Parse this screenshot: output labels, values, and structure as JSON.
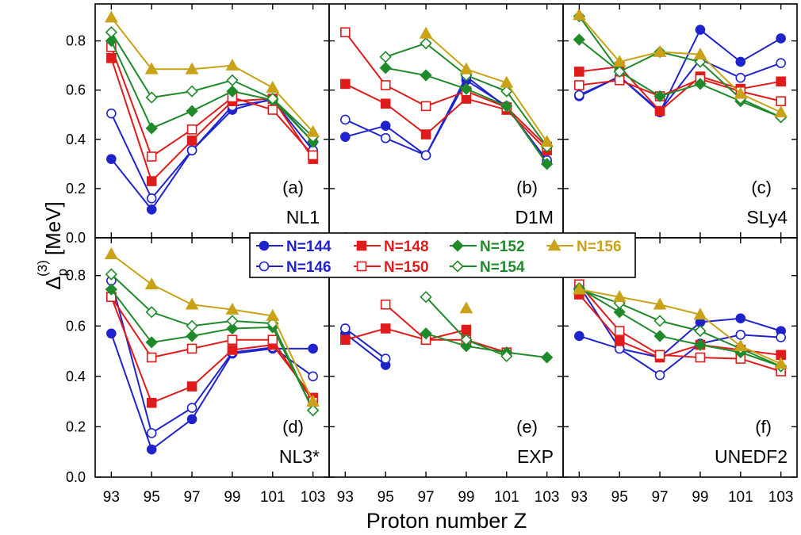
{
  "chart_data": {
    "type": "line",
    "xlabel": "Proton number Z",
    "ylabel": "Δ",
    "ylabel_sub": "p",
    "ylabel_sup": "(3)",
    "ylabel_unit": "[MeV]",
    "x_ticks": [
      93,
      95,
      97,
      99,
      101,
      103
    ],
    "xlim": [
      92.2,
      103.8
    ],
    "ylim": [
      0,
      0.95
    ],
    "y_ticks": [
      0.0,
      0.2,
      0.4,
      0.6,
      0.8
    ],
    "y_tick_labels": [
      "0.0",
      "0.2",
      "0.4",
      "0.6",
      "0.8"
    ],
    "grid": false,
    "legend": {
      "placement": "top-center of middle row",
      "order": [
        "N144",
        "N148",
        "N152",
        "N156",
        "N146",
        "N150",
        "N154"
      ]
    },
    "series_style": {
      "N144": {
        "label": "N=144",
        "color": "#1f23cc",
        "marker": "circle",
        "filled": true
      },
      "N146": {
        "label": "N=146",
        "color": "#1f23cc",
        "marker": "circle",
        "filled": false
      },
      "N148": {
        "label": "N=148",
        "color": "#e01b1b",
        "marker": "square",
        "filled": true
      },
      "N150": {
        "label": "N=150",
        "color": "#e01b1b",
        "marker": "square",
        "filled": false
      },
      "N152": {
        "label": "N=152",
        "color": "#1f8a2a",
        "marker": "diamond",
        "filled": true
      },
      "N154": {
        "label": "N=154",
        "color": "#1f8a2a",
        "marker": "diamond",
        "filled": false
      },
      "N156": {
        "label": "N=156",
        "color": "#c9a218",
        "marker": "triangle",
        "filled": true
      }
    },
    "panels": [
      {
        "tag": "(a)",
        "name": "NL1",
        "series": {
          "N144": [
            [
              93,
              0.32
            ],
            [
              95,
              0.115
            ],
            [
              97,
              0.355
            ],
            [
              99,
              0.52
            ],
            [
              101,
              0.565
            ],
            [
              103,
              0.39
            ]
          ],
          "N146": [
            [
              93,
              0.505
            ],
            [
              95,
              0.16
            ],
            [
              97,
              0.355
            ],
            [
              99,
              0.535
            ],
            [
              101,
              0.56
            ],
            [
              103,
              0.355
            ]
          ],
          "N148": [
            [
              93,
              0.73
            ],
            [
              95,
              0.23
            ],
            [
              97,
              0.395
            ],
            [
              99,
              0.555
            ],
            [
              101,
              0.565
            ],
            [
              103,
              0.32
            ]
          ],
          "N150": [
            [
              93,
              0.775
            ],
            [
              95,
              0.33
            ],
            [
              97,
              0.44
            ],
            [
              99,
              0.57
            ],
            [
              101,
              0.52
            ],
            [
              103,
              0.335
            ]
          ],
          "N152": [
            [
              93,
              0.8
            ],
            [
              95,
              0.445
            ],
            [
              97,
              0.515
            ],
            [
              99,
              0.595
            ],
            [
              101,
              0.56
            ],
            [
              103,
              0.39
            ]
          ],
          "N154": [
            [
              93,
              0.835
            ],
            [
              95,
              0.57
            ],
            [
              97,
              0.595
            ],
            [
              99,
              0.64
            ],
            [
              101,
              0.565
            ],
            [
              103,
              0.41
            ]
          ],
          "N156": [
            [
              93,
              0.895
            ],
            [
              95,
              0.685
            ],
            [
              97,
              0.685
            ],
            [
              99,
              0.7
            ],
            [
              101,
              0.61
            ],
            [
              103,
              0.43
            ]
          ]
        }
      },
      {
        "tag": "(b)",
        "name": "D1M",
        "series": {
          "N144": [
            [
              93,
              0.41
            ],
            [
              95,
              0.455
            ],
            [
              97,
              0.335
            ],
            [
              99,
              0.64
            ],
            [
              101,
              0.535
            ],
            [
              103,
              0.305
            ]
          ],
          "N146": [
            [
              93,
              0.48
            ],
            [
              95,
              0.405
            ],
            [
              97,
              0.335
            ],
            [
              99,
              0.655
            ],
            [
              101,
              0.53
            ],
            [
              103,
              0.315
            ]
          ],
          "N148": [
            [
              93,
              0.625
            ],
            [
              95,
              0.545
            ],
            [
              97,
              0.42
            ],
            [
              99,
              0.565
            ],
            [
              101,
              0.52
            ],
            [
              103,
              0.355
            ]
          ],
          "N150": [
            [
              93,
              0.835
            ],
            [
              95,
              0.62
            ],
            [
              97,
              0.535
            ],
            [
              99,
              0.595
            ],
            [
              101,
              0.53
            ],
            [
              103,
              0.37
            ]
          ],
          "N152": [
            [
              95,
              0.69
            ],
            [
              97,
              0.66
            ],
            [
              99,
              0.605
            ],
            [
              101,
              0.535
            ],
            [
              103,
              0.3
            ]
          ],
          "N154": [
            [
              95,
              0.735
            ],
            [
              97,
              0.79
            ],
            [
              99,
              0.66
            ],
            [
              101,
              0.595
            ],
            [
              103,
              0.37
            ]
          ],
          "N156": [
            [
              97,
              0.83
            ],
            [
              99,
              0.685
            ],
            [
              101,
              0.63
            ],
            [
              103,
              0.39
            ]
          ]
        }
      },
      {
        "tag": "(c)",
        "name": "SLy4",
        "series": {
          "N144": [
            [
              93,
              0.575
            ],
            [
              95,
              0.655
            ],
            [
              97,
              0.51
            ],
            [
              99,
              0.845
            ],
            [
              101,
              0.715
            ],
            [
              103,
              0.81
            ]
          ],
          "N146": [
            [
              93,
              0.58
            ],
            [
              95,
              0.655
            ],
            [
              97,
              0.515
            ],
            [
              99,
              0.725
            ],
            [
              101,
              0.65
            ],
            [
              103,
              0.71
            ]
          ],
          "N148": [
            [
              93,
              0.675
            ],
            [
              95,
              0.695
            ],
            [
              97,
              0.515
            ],
            [
              99,
              0.655
            ],
            [
              101,
              0.605
            ],
            [
              103,
              0.635
            ]
          ],
          "N150": [
            [
              93,
              0.62
            ],
            [
              95,
              0.64
            ],
            [
              97,
              0.575
            ],
            [
              99,
              0.645
            ],
            [
              101,
              0.595
            ],
            [
              103,
              0.555
            ]
          ],
          "N152": [
            [
              93,
              0.805
            ],
            [
              95,
              0.675
            ],
            [
              97,
              0.575
            ],
            [
              99,
              0.625
            ],
            [
              101,
              0.555
            ],
            [
              103,
              0.49
            ]
          ],
          "N154": [
            [
              93,
              0.9
            ],
            [
              95,
              0.675
            ],
            [
              97,
              0.755
            ],
            [
              99,
              0.715
            ],
            [
              101,
              0.565
            ],
            [
              103,
              0.49
            ]
          ],
          "N156": [
            [
              93,
              0.905
            ],
            [
              95,
              0.715
            ],
            [
              97,
              0.755
            ],
            [
              99,
              0.745
            ],
            [
              101,
              0.585
            ],
            [
              103,
              0.51
            ]
          ]
        }
      },
      {
        "tag": "(d)",
        "name": "NL3*",
        "series": {
          "N144": [
            [
              93,
              0.57
            ],
            [
              95,
              0.11
            ],
            [
              97,
              0.23
            ],
            [
              99,
              0.49
            ],
            [
              101,
              0.51
            ],
            [
              103,
              0.51
            ]
          ],
          "N146": [
            [
              93,
              0.78
            ],
            [
              95,
              0.175
            ],
            [
              97,
              0.275
            ],
            [
              99,
              0.495
            ],
            [
              101,
              0.515
            ],
            [
              103,
              0.4
            ]
          ],
          "N148": [
            [
              93,
              0.715
            ],
            [
              95,
              0.295
            ],
            [
              97,
              0.36
            ],
            [
              99,
              0.505
            ],
            [
              101,
              0.525
            ],
            [
              103,
              0.315
            ]
          ],
          "N150": [
            [
              93,
              0.715
            ],
            [
              95,
              0.475
            ],
            [
              97,
              0.51
            ],
            [
              99,
              0.545
            ],
            [
              101,
              0.545
            ],
            [
              103,
              0.3
            ]
          ],
          "N152": [
            [
              93,
              0.745
            ],
            [
              95,
              0.535
            ],
            [
              97,
              0.56
            ],
            [
              99,
              0.59
            ],
            [
              101,
              0.595
            ],
            [
              103,
              0.265
            ]
          ],
          "N154": [
            [
              93,
              0.805
            ],
            [
              95,
              0.655
            ],
            [
              97,
              0.6
            ],
            [
              99,
              0.62
            ],
            [
              101,
              0.61
            ],
            [
              103,
              0.265
            ]
          ],
          "N156": [
            [
              93,
              0.885
            ],
            [
              95,
              0.765
            ],
            [
              97,
              0.685
            ],
            [
              99,
              0.665
            ],
            [
              101,
              0.64
            ],
            [
              103,
              0.3
            ]
          ]
        }
      },
      {
        "tag": "(e)",
        "name": "EXP",
        "series": {
          "N144": [
            [
              93,
              0.57
            ],
            [
              95,
              0.445
            ]
          ],
          "N146": [
            [
              93,
              0.59
            ],
            [
              95,
              0.47
            ]
          ],
          "N148": [
            [
              93,
              0.545
            ],
            [
              95,
              0.59
            ],
            [
              97,
              0.545
            ],
            [
              99,
              0.585
            ]
          ],
          "N150": [
            [
              95,
              0.685
            ],
            [
              97,
              0.545
            ],
            [
              99,
              0.545
            ],
            [
              101,
              0.495
            ]
          ],
          "N152": [
            [
              97,
              0.57
            ],
            [
              99,
              0.52
            ],
            [
              101,
              0.495
            ],
            [
              103,
              0.475
            ]
          ],
          "N154": [
            [
              97,
              0.715
            ],
            [
              99,
              0.545
            ],
            [
              101,
              0.48
            ]
          ],
          "N156": [
            [
              99,
              0.67
            ]
          ]
        }
      },
      {
        "tag": "(f)",
        "name": "UNEDF2",
        "series": {
          "N144": [
            [
              93,
              0.56
            ],
            [
              95,
              0.51
            ],
            [
              97,
              0.475
            ],
            [
              99,
              0.615
            ],
            [
              101,
              0.63
            ],
            [
              103,
              0.58
            ]
          ],
          "N146": [
            [
              93,
              0.76
            ],
            [
              95,
              0.51
            ],
            [
              97,
              0.405
            ],
            [
              99,
              0.53
            ],
            [
              101,
              0.565
            ],
            [
              103,
              0.555
            ]
          ],
          "N148": [
            [
              93,
              0.725
            ],
            [
              95,
              0.54
            ],
            [
              97,
              0.475
            ],
            [
              99,
              0.525
            ],
            [
              101,
              0.505
            ],
            [
              103,
              0.485
            ]
          ],
          "N150": [
            [
              93,
              0.765
            ],
            [
              95,
              0.58
            ],
            [
              97,
              0.485
            ],
            [
              99,
              0.475
            ],
            [
              101,
              0.47
            ],
            [
              103,
              0.42
            ]
          ],
          "N152": [
            [
              93,
              0.75
            ],
            [
              95,
              0.655
            ],
            [
              97,
              0.56
            ],
            [
              99,
              0.525
            ],
            [
              101,
              0.495
            ],
            [
              103,
              0.44
            ]
          ],
          "N154": [
            [
              93,
              0.745
            ],
            [
              95,
              0.69
            ],
            [
              97,
              0.62
            ],
            [
              99,
              0.58
            ],
            [
              101,
              0.51
            ],
            [
              103,
              0.44
            ]
          ],
          "N156": [
            [
              93,
              0.745
            ],
            [
              95,
              0.715
            ],
            [
              97,
              0.685
            ],
            [
              99,
              0.645
            ],
            [
              101,
              0.52
            ],
            [
              103,
              0.45
            ]
          ]
        }
      }
    ]
  }
}
